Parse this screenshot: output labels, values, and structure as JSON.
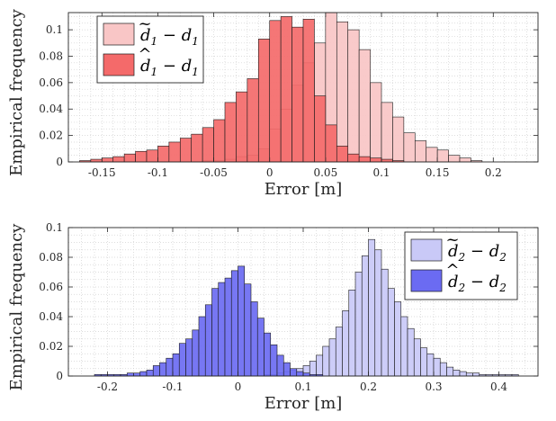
{
  "chart_data": [
    {
      "type": "bar",
      "subtype": "overlaid-histogram",
      "xlabel": "Error [m]",
      "ylabel": "Empirical frequency",
      "xlim": [
        -0.18,
        0.24
      ],
      "ylim": [
        0,
        0.113
      ],
      "xticks": [
        -0.15,
        -0.1,
        -0.05,
        0,
        0.05,
        0.1,
        0.15,
        0.2
      ],
      "xtick_labels": [
        "-0.15",
        "-0.1",
        "-0.05",
        "0",
        "0.05",
        "0.1",
        "0.15",
        "0.2"
      ],
      "yticks": [
        0,
        0.02,
        0.04,
        0.06,
        0.08,
        0.1
      ],
      "ytick_labels": [
        "0",
        "0.02",
        "0.04",
        "0.06",
        "0.08",
        "0.1"
      ],
      "grid": true,
      "legend_position": "top-left",
      "bin_width": 0.01,
      "series": [
        {
          "name": "d̃1 − d1",
          "legend_base": "d",
          "legend_accent": "~",
          "legend_sub": "1",
          "legend_rest": " − d",
          "legend_rest_sub": "1",
          "color": "#f9c6c6",
          "bin_starts": [
            -0.06,
            -0.05,
            -0.04,
            -0.03,
            -0.02,
            -0.01,
            0,
            0.01,
            0.02,
            0.03,
            0.04,
            0.05,
            0.06,
            0.07,
            0.08,
            0.09,
            0.1,
            0.11,
            0.12,
            0.13,
            0.14,
            0.15,
            0.16,
            0.17,
            0.18
          ],
          "values": [
            0.001,
            0.001,
            0.002,
            0.004,
            0.005,
            0.01,
            0.025,
            0.04,
            0.058,
            0.075,
            0.09,
            0.113,
            0.106,
            0.1,
            0.085,
            0.06,
            0.045,
            0.034,
            0.022,
            0.016,
            0.011,
            0.009,
            0.005,
            0.003,
            0.001
          ]
        },
        {
          "name": "d̂1 − d1",
          "legend_base": "d",
          "legend_accent": "^",
          "legend_sub": "1",
          "legend_rest": " − d",
          "legend_rest_sub": "1",
          "color": "#f46a6a",
          "bin_starts": [
            -0.17,
            -0.16,
            -0.15,
            -0.14,
            -0.13,
            -0.12,
            -0.11,
            -0.1,
            -0.09,
            -0.08,
            -0.07,
            -0.06,
            -0.05,
            -0.04,
            -0.03,
            -0.02,
            -0.01,
            0,
            0.01,
            0.02,
            0.03,
            0.04,
            0.05,
            0.06,
            0.07,
            0.08,
            0.09,
            0.1,
            0.11
          ],
          "values": [
            0.001,
            0.002,
            0.003,
            0.004,
            0.006,
            0.008,
            0.009,
            0.012,
            0.015,
            0.018,
            0.021,
            0.026,
            0.032,
            0.045,
            0.053,
            0.063,
            0.093,
            0.107,
            0.11,
            0.102,
            0.108,
            0.05,
            0.028,
            0.012,
            0.006,
            0.004,
            0.003,
            0.002,
            0.001
          ]
        }
      ]
    },
    {
      "type": "bar",
      "subtype": "overlaid-histogram",
      "xlabel": "Error [m]",
      "ylabel": "Empirical frequency",
      "xlim": [
        -0.26,
        0.46
      ],
      "ylim": [
        0,
        0.1
      ],
      "xticks": [
        -0.2,
        -0.1,
        0,
        0.1,
        0.2,
        0.3,
        0.4
      ],
      "xtick_labels": [
        "-0.2",
        "-0.1",
        "0",
        "0.1",
        "0.2",
        "0.3",
        "0.4"
      ],
      "yticks": [
        0,
        0.02,
        0.04,
        0.06,
        0.08,
        0.1
      ],
      "ytick_labels": [
        "0",
        "0.02",
        "0.04",
        "0.06",
        "0.08",
        "0.1"
      ],
      "grid": true,
      "legend_position": "top-right",
      "bin_width": 0.01,
      "series": [
        {
          "name": "d̃2 − d2",
          "legend_base": "d",
          "legend_accent": "~",
          "legend_sub": "2",
          "legend_rest": " − d",
          "legend_rest_sub": "2",
          "color": "#c9c9f7",
          "bin_starts": [
            0.04,
            0.05,
            0.06,
            0.07,
            0.08,
            0.09,
            0.1,
            0.11,
            0.12,
            0.13,
            0.14,
            0.15,
            0.16,
            0.17,
            0.18,
            0.19,
            0.2,
            0.21,
            0.22,
            0.23,
            0.24,
            0.25,
            0.26,
            0.27,
            0.28,
            0.29,
            0.3,
            0.31,
            0.32,
            0.33,
            0.34,
            0.35,
            0.36,
            0.37,
            0.38,
            0.39,
            0.4,
            0.41,
            0.42
          ],
          "values": [
            0.001,
            0.001,
            0.002,
            0.003,
            0.004,
            0.005,
            0.007,
            0.01,
            0.014,
            0.02,
            0.025,
            0.033,
            0.044,
            0.058,
            0.07,
            0.081,
            0.092,
            0.085,
            0.072,
            0.059,
            0.05,
            0.04,
            0.032,
            0.025,
            0.019,
            0.015,
            0.012,
            0.009,
            0.006,
            0.004,
            0.003,
            0.002,
            0.002,
            0.001,
            0.001,
            0.001,
            0.001,
            0.001,
            0.001
          ]
        },
        {
          "name": "d̂2 − d2",
          "legend_base": "d",
          "legend_accent": "^",
          "legend_sub": "2",
          "legend_rest": " − d",
          "legend_rest_sub": "2",
          "color": "#6b6bf2",
          "bin_starts": [
            -0.22,
            -0.21,
            -0.2,
            -0.19,
            -0.18,
            -0.17,
            -0.16,
            -0.15,
            -0.14,
            -0.13,
            -0.12,
            -0.11,
            -0.1,
            -0.09,
            -0.08,
            -0.07,
            -0.06,
            -0.05,
            -0.04,
            -0.03,
            -0.02,
            -0.01,
            0,
            0.01,
            0.02,
            0.03,
            0.04,
            0.05,
            0.06,
            0.07,
            0.08,
            0.09,
            0.1,
            0.11,
            0.12
          ],
          "values": [
            0.001,
            0.001,
            0.001,
            0.001,
            0.001,
            0.002,
            0.002,
            0.003,
            0.004,
            0.007,
            0.009,
            0.012,
            0.015,
            0.022,
            0.025,
            0.031,
            0.04,
            0.048,
            0.059,
            0.063,
            0.066,
            0.071,
            0.074,
            0.062,
            0.05,
            0.039,
            0.029,
            0.021,
            0.014,
            0.009,
            0.005,
            0.003,
            0.002,
            0.001,
            0.001
          ]
        }
      ]
    }
  ]
}
